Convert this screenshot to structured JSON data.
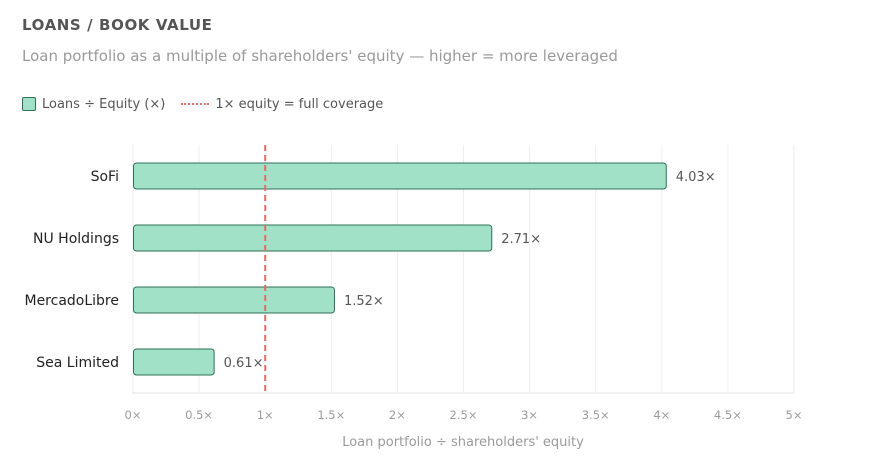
{
  "title": "LOANS / BOOK VALUE",
  "subtitle": "Loan portfolio as a multiple of shareholders' equity — higher = more leveraged",
  "legend": {
    "series_label": "Loans ÷ Equity (×)",
    "reference_label": "1× equity = full coverage"
  },
  "colors": {
    "bar_fill": "#a1e1c8",
    "bar_stroke": "#2f6f55",
    "reference_line": "#e06c6c",
    "grid": "#eeeeee"
  },
  "chart_data": {
    "type": "bar",
    "orientation": "horizontal",
    "categories": [
      "SoFi",
      "NU Holdings",
      "MercadoLibre",
      "Sea Limited"
    ],
    "values": [
      4.03,
      2.71,
      1.52,
      0.61
    ],
    "value_labels": [
      "4.03×",
      "2.71×",
      "1.52×",
      "0.61×"
    ],
    "series": [
      {
        "name": "Loans ÷ Equity (×)",
        "values": [
          4.03,
          2.71,
          1.52,
          0.61
        ]
      }
    ],
    "reference_line": {
      "value": 1,
      "label": "1× equity = full coverage"
    },
    "xlim": [
      0,
      5
    ],
    "xticks": [
      0,
      0.5,
      1,
      1.5,
      2,
      2.5,
      3,
      3.5,
      4,
      4.5,
      5
    ],
    "xtick_labels": [
      "0×",
      "0.5×",
      "1×",
      "1.5×",
      "2×",
      "2.5×",
      "3×",
      "3.5×",
      "4×",
      "4.5×",
      "5×"
    ],
    "xlabel": "Loan portfolio ÷ shareholders' equity",
    "ylabel": "",
    "grid": true,
    "legend_position": "top-left"
  }
}
